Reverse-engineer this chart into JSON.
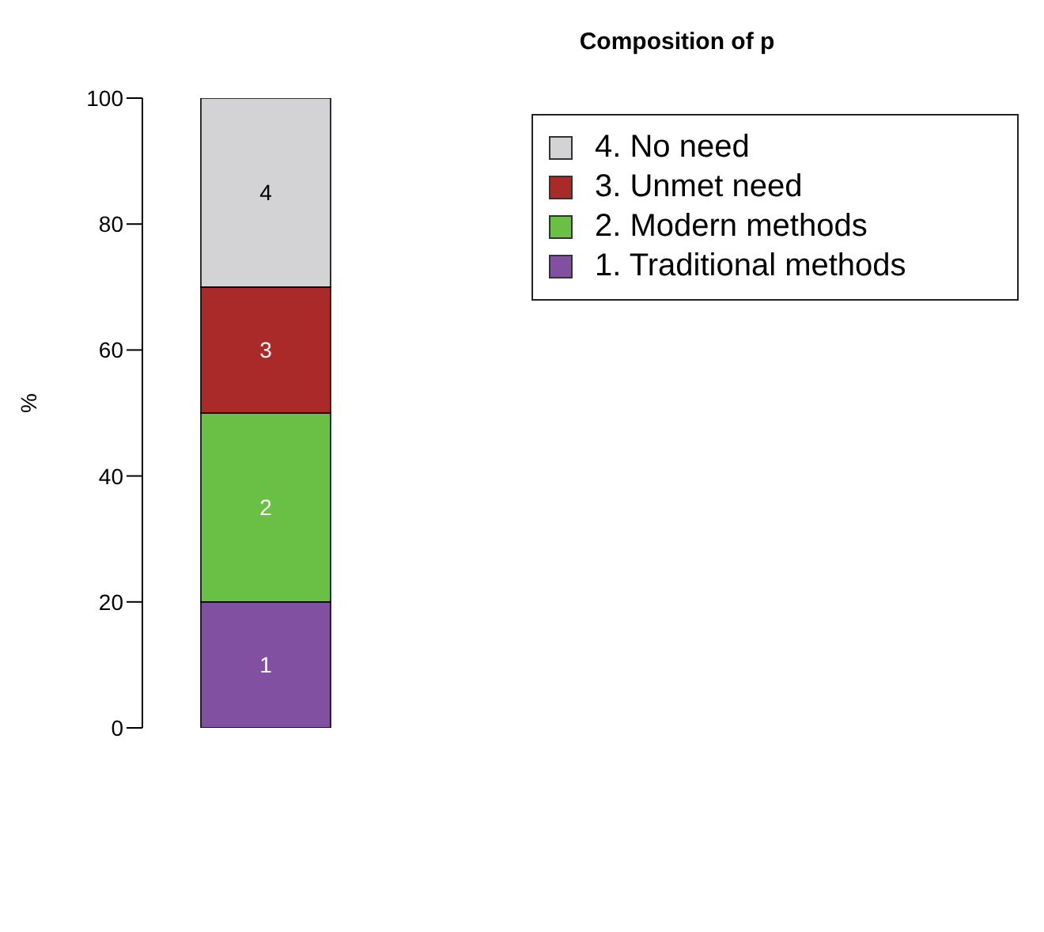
{
  "chart_data": {
    "type": "bar",
    "title": "Composition of p",
    "ylabel": "%",
    "categories": [
      null
    ],
    "stacked": true,
    "series": [
      {
        "name": "1. Traditional methods",
        "color": "#8250a0",
        "values": [
          20
        ]
      },
      {
        "name": "2. Modern methods",
        "color": "#6abf45",
        "values": [
          30
        ]
      },
      {
        "name": "3. Unmet need",
        "color": "#aa2a2a",
        "values": [
          20
        ]
      },
      {
        "name": "4. No need",
        "color": "#d3d3d5",
        "values": [
          30
        ]
      }
    ],
    "annotations": [
      "1",
      "2",
      "3",
      "4"
    ],
    "ylim": [
      0,
      100
    ],
    "yticks": [
      0,
      20,
      40,
      60,
      80,
      100
    ],
    "grid": false,
    "legend": "top right"
  }
}
